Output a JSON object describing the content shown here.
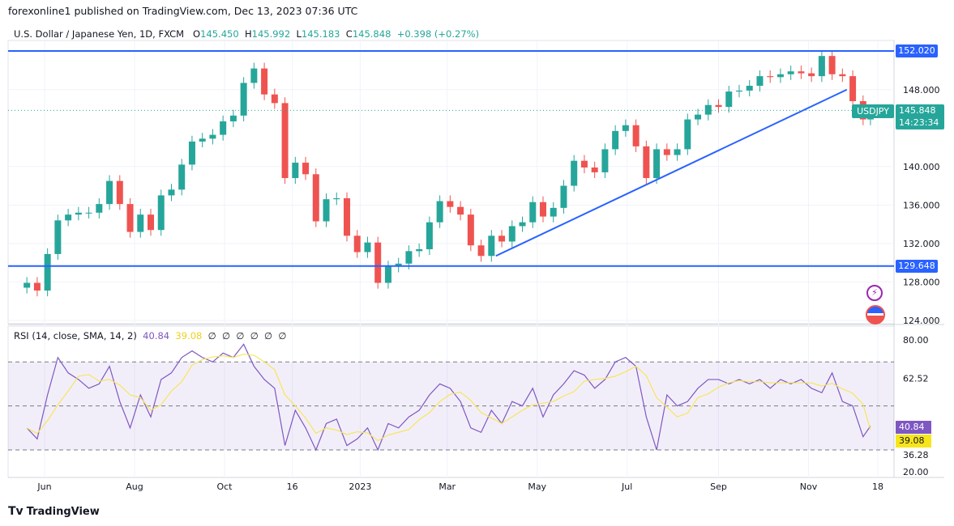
{
  "header": {
    "published": "forexonline1 published on TradingView.com, Dec 13, 2023 07:36 UTC"
  },
  "legend": {
    "symbol": "U.S. Dollar / Japanese Yen, 1D, FXCM",
    "o_label": "O",
    "o": "145.450",
    "h_label": "H",
    "h": "145.992",
    "l_label": "L",
    "l": "145.183",
    "c_label": "C",
    "c": "145.848",
    "change": "+0.398 (+0.27%)"
  },
  "rsi_legend": {
    "title": "RSI (14, close, SMA, 14, 2)",
    "rsi": "40.84",
    "sma": "39.08",
    "empties": [
      "∅",
      "∅",
      "∅",
      "∅",
      "∅",
      "∅"
    ]
  },
  "price_badge": {
    "symbol": "USDJPY",
    "price": "145.848",
    "countdown": "14:23:34"
  },
  "levels": [
    {
      "label": "152.020",
      "value": 152.02
    },
    {
      "label": "129.648",
      "value": 129.648
    }
  ],
  "footer": {
    "brand": "TradingView"
  },
  "colors": {
    "up": "#26a69a",
    "down": "#ef5350",
    "line": "#2962ff",
    "rsi": "#7e57c2",
    "sma": "#f7e55c"
  },
  "chart_data": [
    {
      "type": "candlestick",
      "price_ticks": [
        "148.000",
        "140.000",
        "136.000",
        "132.000",
        "128.000",
        "124.000"
      ],
      "price_ticks_values": [
        148,
        140,
        136,
        132,
        128,
        124
      ],
      "ylim": [
        124,
        153
      ],
      "x_ticks": [
        {
          "label": "Jun",
          "date": "2022-06-01"
        },
        {
          "label": "Aug",
          "date": "2022-08-01"
        },
        {
          "label": "Oct",
          "date": "2022-10-01"
        },
        {
          "label": "16",
          "date": "2022-11-16"
        },
        {
          "label": "2023",
          "date": "2023-01-01"
        },
        {
          "label": "Mar",
          "date": "2023-03-01"
        },
        {
          "label": "May",
          "date": "2023-05-01"
        },
        {
          "label": "Jul",
          "date": "2023-07-01"
        },
        {
          "label": "Sep",
          "date": "2023-09-01"
        },
        {
          "label": "Nov",
          "date": "2023-11-01"
        },
        {
          "label": "18",
          "date": "2023-12-18"
        }
      ],
      "trendline": {
        "from": {
          "date": "2023-04-03",
          "value": 130.7
        },
        "to": {
          "date": "2023-11-27",
          "value": 148.0
        }
      },
      "weekly_close": [
        [
          "2022-05-20",
          127.9
        ],
        [
          "2022-05-27",
          127.1
        ],
        [
          "2022-06-03",
          130.9
        ],
        [
          "2022-06-10",
          134.4
        ],
        [
          "2022-06-17",
          135.0
        ],
        [
          "2022-06-24",
          135.2
        ],
        [
          "2022-07-01",
          135.2
        ],
        [
          "2022-07-08",
          136.1
        ],
        [
          "2022-07-15",
          138.5
        ],
        [
          "2022-07-22",
          136.1
        ],
        [
          "2022-07-29",
          133.2
        ],
        [
          "2022-08-05",
          135.0
        ],
        [
          "2022-08-12",
          133.4
        ],
        [
          "2022-08-19",
          137.0
        ],
        [
          "2022-08-26",
          137.6
        ],
        [
          "2022-09-02",
          140.2
        ],
        [
          "2022-09-09",
          142.6
        ],
        [
          "2022-09-16",
          142.9
        ],
        [
          "2022-09-23",
          143.3
        ],
        [
          "2022-09-30",
          144.7
        ],
        [
          "2022-10-07",
          145.3
        ],
        [
          "2022-10-14",
          148.7
        ],
        [
          "2022-10-21",
          150.2
        ],
        [
          "2022-10-28",
          147.5
        ],
        [
          "2022-11-04",
          146.6
        ],
        [
          "2022-11-11",
          138.8
        ],
        [
          "2022-11-18",
          140.4
        ],
        [
          "2022-11-25",
          139.2
        ],
        [
          "2022-12-02",
          134.3
        ],
        [
          "2022-12-09",
          136.6
        ],
        [
          "2022-12-16",
          136.7
        ],
        [
          "2022-12-23",
          132.8
        ],
        [
          "2022-12-30",
          131.1
        ],
        [
          "2023-01-06",
          132.1
        ],
        [
          "2023-01-13",
          127.9
        ],
        [
          "2023-01-20",
          129.6
        ],
        [
          "2023-01-27",
          129.9
        ],
        [
          "2023-02-03",
          131.2
        ],
        [
          "2023-02-10",
          131.4
        ],
        [
          "2023-02-17",
          134.2
        ],
        [
          "2023-02-24",
          136.4
        ],
        [
          "2023-03-03",
          135.8
        ],
        [
          "2023-03-10",
          135.0
        ],
        [
          "2023-03-17",
          131.8
        ],
        [
          "2023-03-24",
          130.7
        ],
        [
          "2023-03-31",
          132.8
        ],
        [
          "2023-04-07",
          132.2
        ],
        [
          "2023-04-14",
          133.8
        ],
        [
          "2023-04-21",
          134.2
        ],
        [
          "2023-04-28",
          136.3
        ],
        [
          "2023-05-05",
          134.8
        ],
        [
          "2023-05-12",
          135.7
        ],
        [
          "2023-05-19",
          138.0
        ],
        [
          "2023-05-26",
          140.6
        ],
        [
          "2023-06-02",
          139.9
        ],
        [
          "2023-06-09",
          139.4
        ],
        [
          "2023-06-16",
          141.8
        ],
        [
          "2023-06-23",
          143.7
        ],
        [
          "2023-06-30",
          144.3
        ],
        [
          "2023-07-07",
          142.1
        ],
        [
          "2023-07-14",
          138.8
        ],
        [
          "2023-07-21",
          141.8
        ],
        [
          "2023-07-28",
          141.2
        ],
        [
          "2023-08-04",
          141.8
        ],
        [
          "2023-08-11",
          144.9
        ],
        [
          "2023-08-18",
          145.4
        ],
        [
          "2023-08-25",
          146.4
        ],
        [
          "2023-09-01",
          146.2
        ],
        [
          "2023-09-08",
          147.8
        ],
        [
          "2023-09-15",
          147.9
        ],
        [
          "2023-09-22",
          148.4
        ],
        [
          "2023-09-29",
          149.4
        ],
        [
          "2023-10-06",
          149.3
        ],
        [
          "2023-10-13",
          149.6
        ],
        [
          "2023-10-20",
          149.9
        ],
        [
          "2023-10-27",
          149.7
        ],
        [
          "2023-11-03",
          149.4
        ],
        [
          "2023-11-10",
          151.5
        ],
        [
          "2023-11-17",
          149.6
        ],
        [
          "2023-11-24",
          149.4
        ],
        [
          "2023-12-01",
          146.8
        ],
        [
          "2023-12-08",
          144.9
        ],
        [
          "2023-12-13",
          145.848
        ]
      ]
    },
    {
      "type": "line",
      "title": "RSI (14, close, SMA, 14, 2)",
      "y_ticks": [
        "80.00",
        "62.52",
        "36.28",
        "20.00"
      ],
      "y_ticks_values": [
        80,
        62.52,
        36.28,
        20
      ],
      "bands": {
        "upper": 70,
        "middle": 50,
        "lower": 30
      },
      "ylim": [
        20,
        80
      ],
      "rsi": [
        40,
        35,
        55,
        72,
        65,
        62,
        58,
        60,
        68,
        52,
        40,
        55,
        45,
        62,
        65,
        72,
        75,
        72,
        70,
        74,
        72,
        78,
        68,
        62,
        58,
        32,
        48,
        40,
        30,
        42,
        44,
        32,
        35,
        40,
        30,
        42,
        40,
        45,
        48,
        55,
        60,
        58,
        52,
        40,
        38,
        48,
        42,
        52,
        50,
        58,
        45,
        55,
        60,
        66,
        64,
        58,
        62,
        70,
        72,
        68,
        45,
        30,
        55,
        50,
        52,
        58,
        62,
        62,
        60,
        62,
        60,
        62,
        58,
        62,
        60,
        62,
        58,
        56,
        65,
        52,
        50,
        36,
        40.84
      ],
      "last_rsi": 40.84,
      "last_sma": 39.08
    }
  ]
}
